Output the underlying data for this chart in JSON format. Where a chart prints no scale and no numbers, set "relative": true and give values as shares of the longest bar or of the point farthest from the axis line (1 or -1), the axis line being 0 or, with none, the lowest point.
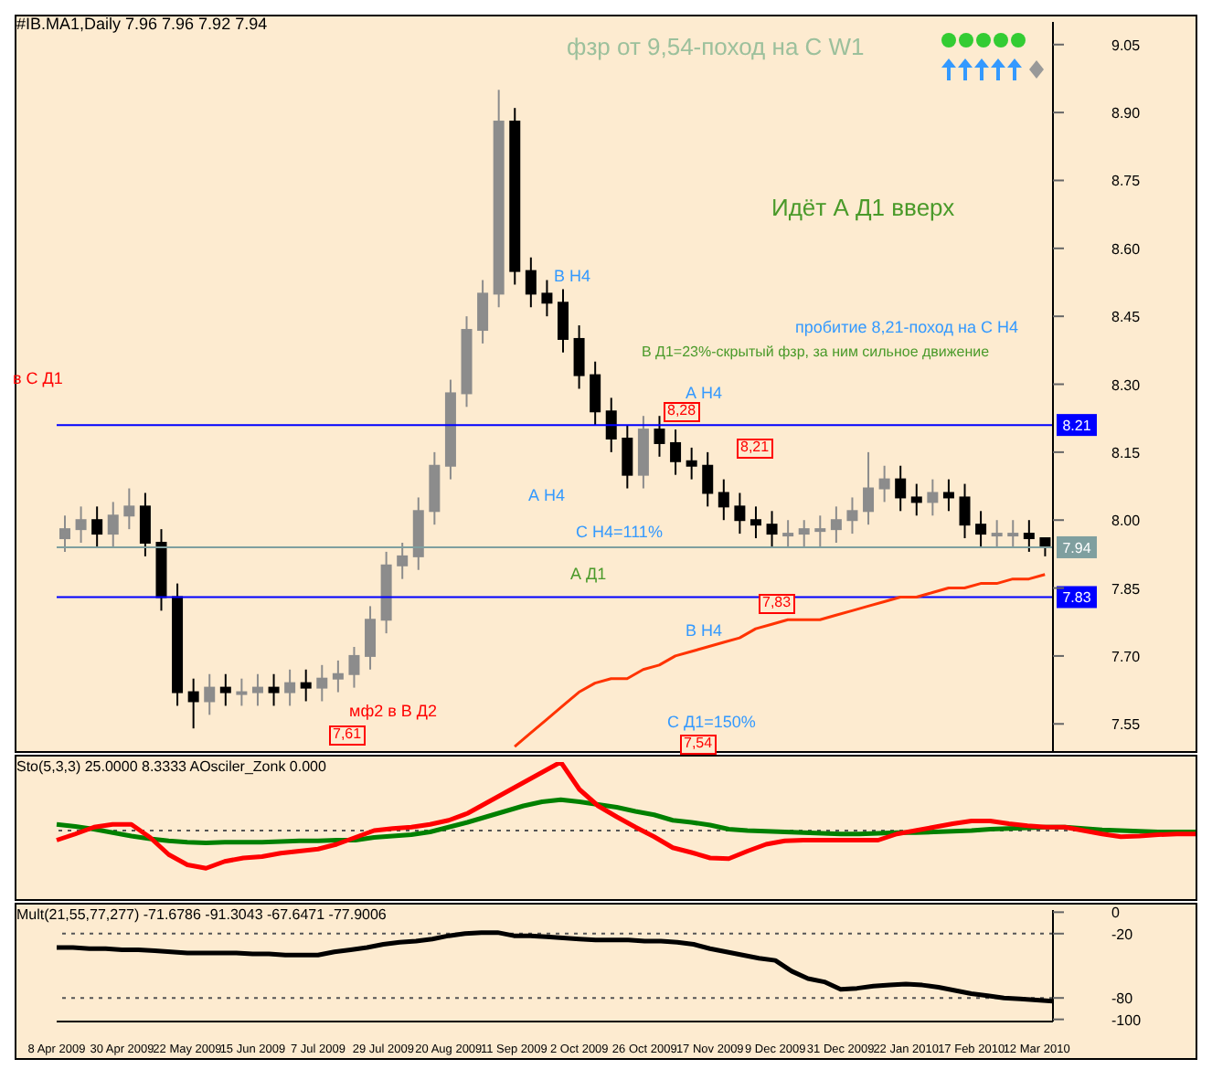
{
  "chart_data": [
    {
      "type": "candlestick",
      "colors": [
        "#8c8c8c",
        "#8c8c8c",
        "#000000",
        "#8c8c8c",
        "#8c8c8c",
        "#000000",
        "#000000",
        "#000000",
        "#000000",
        "#8c8c8c",
        "#000000",
        "#8c8c8c",
        "#8c8c8c",
        "#000000",
        "#8c8c8c",
        "#000000",
        "#8c8c8c",
        "#8c8c8c",
        "#8c8c8c",
        "#8c8c8c",
        "#8c8c8c",
        "#8c8c8c",
        "#8c8c8c",
        "#8c8c8c",
        "#8c8c8c",
        "#8c8c8c",
        "#8c8c8c",
        "#8c8c8c",
        "#000000",
        "#000000",
        "#000000",
        "#000000",
        "#000000",
        "#000000",
        "#000000",
        "#000000",
        "#8c8c8c",
        "#000000",
        "#000000",
        "#000000",
        "#000000",
        "#000000",
        "#000000",
        "#000000",
        "#000000",
        "#8c8c8c",
        "#8c8c8c",
        "#8c8c8c",
        "#8c8c8c",
        "#8c8c8c",
        "#8c8c8c",
        "#8c8c8c",
        "#000000",
        "#000000",
        "#8c8c8c",
        "#000000",
        "#000000",
        "#000000",
        "#8c8c8c",
        "#8c8c8c",
        "#000000",
        "#000000"
      ],
      "categories": [
        null,
        null,
        null,
        null,
        null,
        null,
        null,
        null,
        null,
        null,
        null,
        null,
        null,
        null,
        null,
        null,
        null,
        null,
        null,
        null,
        null,
        null,
        null,
        null,
        null,
        null,
        null,
        null,
        null,
        null,
        null,
        null,
        null,
        null,
        null,
        null,
        null,
        null,
        null,
        null,
        null,
        null,
        null,
        null,
        null,
        null,
        null,
        null,
        null,
        null,
        null,
        null,
        null,
        null,
        null,
        null,
        null,
        null,
        null,
        null,
        null,
        null
      ],
      "ohlc": [
        [
          7.96,
          8.01,
          7.93,
          7.98
        ],
        [
          7.98,
          8.03,
          7.95,
          8.0
        ],
        [
          8.0,
          8.03,
          7.94,
          7.97
        ],
        [
          7.97,
          8.04,
          7.94,
          8.01
        ],
        [
          8.01,
          8.07,
          7.98,
          8.03
        ],
        [
          8.03,
          8.06,
          7.92,
          7.95
        ],
        [
          7.95,
          7.98,
          7.8,
          7.83
        ],
        [
          7.83,
          7.86,
          7.59,
          7.62
        ],
        [
          7.62,
          7.65,
          7.54,
          7.6
        ],
        [
          7.6,
          7.66,
          7.57,
          7.63
        ],
        [
          7.63,
          7.66,
          7.59,
          7.62
        ],
        [
          7.62,
          7.65,
          7.59,
          7.62
        ],
        [
          7.62,
          7.66,
          7.59,
          7.63
        ],
        [
          7.63,
          7.66,
          7.59,
          7.62
        ],
        [
          7.62,
          7.67,
          7.59,
          7.64
        ],
        [
          7.64,
          7.67,
          7.6,
          7.63
        ],
        [
          7.63,
          7.68,
          7.6,
          7.65
        ],
        [
          7.65,
          7.69,
          7.62,
          7.66
        ],
        [
          7.66,
          7.72,
          7.63,
          7.7
        ],
        [
          7.7,
          7.81,
          7.67,
          7.78
        ],
        [
          7.78,
          7.93,
          7.75,
          7.9
        ],
        [
          7.9,
          7.95,
          7.87,
          7.92
        ],
        [
          7.92,
          8.05,
          7.89,
          8.02
        ],
        [
          8.02,
          8.15,
          7.99,
          8.12
        ],
        [
          8.12,
          8.31,
          8.09,
          8.28
        ],
        [
          8.28,
          8.45,
          8.25,
          8.42
        ],
        [
          8.42,
          8.53,
          8.39,
          8.5
        ],
        [
          8.5,
          8.95,
          8.47,
          8.88
        ],
        [
          8.88,
          8.91,
          8.52,
          8.55
        ],
        [
          8.55,
          8.58,
          8.47,
          8.5
        ],
        [
          8.5,
          8.53,
          8.45,
          8.48
        ],
        [
          8.48,
          8.51,
          8.37,
          8.4
        ],
        [
          8.4,
          8.43,
          8.29,
          8.32
        ],
        [
          8.32,
          8.35,
          8.21,
          8.24
        ],
        [
          8.24,
          8.27,
          8.15,
          8.18
        ],
        [
          8.18,
          8.21,
          8.07,
          8.1
        ],
        [
          8.1,
          8.23,
          8.07,
          8.2
        ],
        [
          8.2,
          8.23,
          8.14,
          8.17
        ],
        [
          8.17,
          8.2,
          8.1,
          8.13
        ],
        [
          8.13,
          8.16,
          8.09,
          8.12
        ],
        [
          8.12,
          8.15,
          8.03,
          8.06
        ],
        [
          8.06,
          8.09,
          8.0,
          8.03
        ],
        [
          8.03,
          8.06,
          7.97,
          8.0
        ],
        [
          8.0,
          8.03,
          7.96,
          7.99
        ],
        [
          7.99,
          8.02,
          7.94,
          7.97
        ],
        [
          7.97,
          8.0,
          7.94,
          7.97
        ],
        [
          7.97,
          8.0,
          7.94,
          7.98
        ],
        [
          7.98,
          8.01,
          7.94,
          7.98
        ],
        [
          7.98,
          8.03,
          7.95,
          8.0
        ],
        [
          8.0,
          8.05,
          7.97,
          8.02
        ],
        [
          8.02,
          8.15,
          7.99,
          8.07
        ],
        [
          8.07,
          8.12,
          8.04,
          8.09
        ],
        [
          8.09,
          8.12,
          8.02,
          8.05
        ],
        [
          8.05,
          8.08,
          8.01,
          8.04
        ],
        [
          8.04,
          8.09,
          8.01,
          8.06
        ],
        [
          8.06,
          8.09,
          8.02,
          8.05
        ],
        [
          8.05,
          8.08,
          7.96,
          7.99
        ],
        [
          7.99,
          8.02,
          7.94,
          7.97
        ],
        [
          7.97,
          8.0,
          7.94,
          7.97
        ],
        [
          7.97,
          8.0,
          7.94,
          7.97
        ],
        [
          7.97,
          8.0,
          7.93,
          7.96
        ],
        [
          7.96,
          7.96,
          7.92,
          7.94
        ]
      ],
      "series": [
        {
          "type": "line",
          "color": "#ff3300",
          "values": [
            null,
            null,
            null,
            null,
            null,
            null,
            null,
            null,
            null,
            null,
            null,
            null,
            null,
            null,
            null,
            null,
            null,
            null,
            null,
            null,
            null,
            null,
            null,
            null,
            null,
            null,
            null,
            null,
            7.5,
            7.53,
            7.56,
            7.59,
            7.62,
            7.64,
            7.65,
            7.65,
            7.67,
            7.68,
            7.7,
            7.71,
            7.72,
            7.73,
            7.74,
            7.76,
            7.77,
            7.78,
            7.78,
            7.78,
            7.79,
            7.8,
            7.81,
            7.82,
            7.83,
            7.83,
            7.84,
            7.85,
            7.85,
            7.86,
            7.86,
            7.87,
            7.87,
            7.88
          ]
        }
      ],
      "ylim": [
        7.49,
        9.1
      ],
      "yticks": [
        7.55,
        {
          "value": 7.7,
          "label": "7.70"
        },
        7.85,
        {
          "value": 8.0,
          "label": "8.00"
        },
        8.15,
        {
          "value": 8.3,
          "label": "8.30"
        },
        8.45,
        {
          "value": 8.6,
          "label": "8.60"
        },
        8.75,
        {
          "value": 8.9,
          "label": "8.90"
        },
        9.05
      ],
      "ref_lines": [
        {
          "axis": "y",
          "value": 8.21,
          "label": "8.21",
          "color": "#0000ff"
        },
        {
          "axis": "y",
          "value": 7.83,
          "label": "7.83",
          "color": "#0000ff"
        },
        {
          "axis": "y",
          "value": 7.94,
          "label": "7.94",
          "color": "#7f9f9f"
        }
      ],
      "annotations": [
        "#IB.MA1,Daily  7.96 7.96 7.92 7.94",
        "фзр от 9,54-поход на С W1",
        "Идёт А Д1 вверх",
        "пробитие 8,21-поход на С Н4",
        "В Д1=23%-скрытый фзр, за ним сильное движение",
        "В Н4",
        "А Н4",
        "А Н4",
        "С Н4=111%",
        "А Д1",
        "В Н4",
        "С Д1=150%",
        "мф2 в В Д2",
        "в С Д1",
        "7,61",
        "8,28",
        "8,21",
        "7,83",
        "7,54"
      ],
      "tick_labels": "y",
      "legend": false,
      "grid": false
    },
    {
      "type": "line",
      "relative": true,
      "categories": [
        null,
        null,
        null,
        null,
        null,
        null,
        null,
        null,
        null,
        null,
        null,
        null,
        null,
        null,
        null,
        null,
        null,
        null,
        null,
        null,
        null,
        null,
        null,
        null,
        null,
        null,
        null,
        null,
        null,
        null,
        null,
        null,
        null,
        null,
        null,
        null,
        null,
        null,
        null,
        null,
        null,
        null,
        null,
        null,
        null,
        null,
        null,
        null,
        null,
        null,
        null,
        null,
        null,
        null,
        null,
        null,
        null,
        null,
        null,
        null,
        null,
        null
      ],
      "series": [
        {
          "color": "#008000",
          "values": [
            0.09,
            0.06,
            0.02,
            -0.03,
            -0.08,
            -0.12,
            -0.15,
            -0.17,
            -0.18,
            -0.17,
            -0.17,
            -0.17,
            -0.16,
            -0.15,
            -0.15,
            -0.14,
            -0.14,
            -0.1,
            -0.08,
            -0.06,
            -0.02,
            0.05,
            0.12,
            0.2,
            0.28,
            0.36,
            0.42,
            0.45,
            0.42,
            0.38,
            0.34,
            0.28,
            0.23,
            0.15,
            0.12,
            0.08,
            0.02,
            0.0,
            -0.01,
            -0.02,
            -0.03,
            -0.04,
            -0.05,
            -0.05,
            -0.04,
            -0.03,
            -0.03,
            -0.02,
            -0.01,
            0.0,
            0.02,
            0.03,
            0.04,
            0.05,
            0.05,
            0.03,
            0.01,
            0.0,
            -0.01,
            -0.02,
            -0.02,
            -0.02
          ]
        },
        {
          "color": "#ff0000",
          "values": [
            -0.14,
            -0.05,
            0.05,
            0.09,
            0.09,
            -0.1,
            -0.35,
            -0.5,
            -0.55,
            -0.45,
            -0.4,
            -0.38,
            -0.33,
            -0.3,
            -0.27,
            -0.2,
            -0.1,
            0.0,
            0.03,
            0.05,
            0.09,
            0.15,
            0.25,
            0.4,
            0.55,
            0.7,
            0.85,
            1,
            0.6,
            0.36,
            0.2,
            0.05,
            -0.09,
            -0.25,
            -0.32,
            -0.4,
            -0.41,
            -0.3,
            -0.2,
            -0.15,
            -0.14,
            -0.14,
            -0.14,
            -0.14,
            -0.14,
            -0.05,
            0.0,
            0.05,
            0.1,
            0.14,
            0.14,
            0.1,
            0.07,
            0.05,
            0.05,
            0.0,
            -0.05,
            -0.09,
            -0.08,
            -0.06,
            -0.05,
            -0.05
          ]
        }
      ],
      "ref_lines": [
        {
          "axis": "y",
          "value": 0,
          "color": "#555555",
          "line_style": "dotted"
        }
      ],
      "annotations": [
        "Sto(5,3,3) 25.0000 8.3333  AOsciler_Zonk 0.000"
      ],
      "tick_labels": false,
      "legend": false,
      "grid": false
    },
    {
      "type": "line",
      "categories": [
        "8 Apr 2009",
        null,
        null,
        null,
        "30 Apr 2009",
        null,
        null,
        null,
        "22 May 2009",
        null,
        null,
        null,
        "15 Jun 2009",
        null,
        null,
        null,
        "7 Jul 2009",
        null,
        null,
        null,
        "29 Jul 2009",
        null,
        null,
        null,
        "20 Aug 2009",
        null,
        null,
        null,
        "11 Sep 2009",
        null,
        null,
        null,
        "2 Oct 2009",
        null,
        null,
        null,
        "26 Oct 2009",
        null,
        null,
        null,
        "17 Nov 2009",
        null,
        null,
        null,
        "9 Dec 2009",
        null,
        null,
        null,
        "31 Dec 2009",
        null,
        null,
        null,
        "22 Jan 2010",
        null,
        null,
        null,
        "17 Feb 2010",
        null,
        null,
        null,
        "12 Mar 2010",
        null
      ],
      "series": [
        {
          "color": "#000000",
          "values": [
            -33,
            -33,
            -34,
            -34,
            -35,
            -35,
            -36,
            -37,
            -38,
            -38,
            -38,
            -38,
            -39,
            -39,
            -40,
            -40,
            -40,
            -37,
            -35,
            -33,
            -30,
            -28,
            -27,
            -25,
            -22,
            -20,
            -19,
            -19,
            -22,
            -22,
            -23,
            -24,
            -25,
            -26,
            -26,
            -26,
            -27,
            -27,
            -28,
            -30,
            -34,
            -37,
            -40,
            -43,
            -45,
            -55,
            -62,
            -65,
            -72,
            -71,
            -69,
            -68,
            -67,
            -68,
            -70,
            -73,
            -76,
            -78,
            -80,
            -81,
            -82,
            -83
          ]
        }
      ],
      "ylim": [
        -102,
        2
      ],
      "yticks": [
        0,
        -20,
        -80,
        -100
      ],
      "ref_lines": [
        {
          "axis": "y",
          "value": -20,
          "color": "#555555",
          "line_style": "dotted"
        },
        {
          "axis": "y",
          "value": -80,
          "color": "#555555",
          "line_style": "dotted"
        }
      ],
      "annotations": [
        "Mult(21,55,77,277) -71.6786 -91.3043 -67.6471 -77.9006"
      ],
      "legend": false,
      "grid": false
    }
  ]
}
